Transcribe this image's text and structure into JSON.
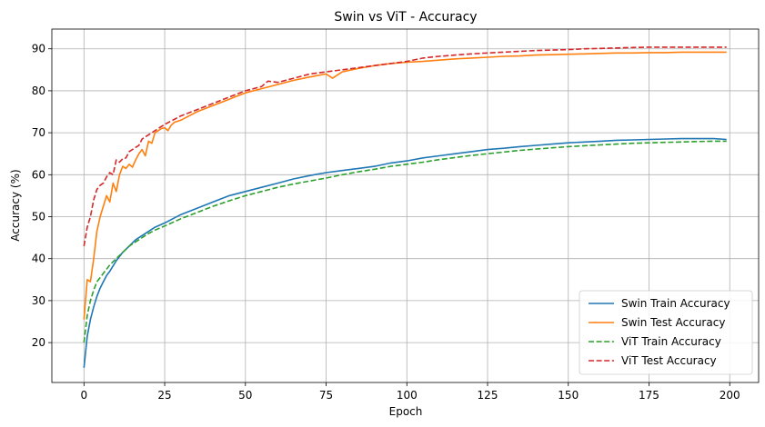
{
  "chart_data": {
    "type": "line",
    "title": "Swin vs ViT - Accuracy",
    "xlabel": "Epoch",
    "ylabel": "Accuracy (%)",
    "xlim": [
      -9.95,
      208.95
    ],
    "ylim": [
      10.5,
      94.7
    ],
    "xticks": [
      0,
      25,
      50,
      75,
      100,
      125,
      150,
      175,
      200
    ],
    "yticks": [
      20,
      30,
      40,
      50,
      60,
      70,
      80,
      90
    ],
    "grid": true,
    "legend_position": "bottom-right",
    "series": [
      {
        "name": "Swin Train Accuracy",
        "color": "#1f77b4",
        "dash": "solid",
        "x": [
          0,
          1,
          2,
          3,
          4,
          5,
          6,
          7,
          8,
          10,
          12,
          14,
          16,
          18,
          20,
          22,
          25,
          30,
          35,
          40,
          45,
          50,
          55,
          60,
          65,
          70,
          75,
          80,
          85,
          90,
          95,
          100,
          105,
          110,
          115,
          120,
          125,
          130,
          135,
          140,
          145,
          150,
          155,
          160,
          165,
          170,
          175,
          180,
          185,
          190,
          195,
          199
        ],
        "y": [
          14.0,
          21.5,
          25.5,
          28.5,
          31.0,
          33.0,
          34.5,
          36.0,
          37.0,
          39.5,
          41.5,
          43.0,
          44.5,
          45.5,
          46.5,
          47.5,
          48.5,
          50.5,
          52.0,
          53.5,
          55.0,
          56.0,
          57.0,
          58.0,
          59.0,
          59.8,
          60.5,
          61.0,
          61.5,
          62.0,
          62.8,
          63.3,
          64.0,
          64.5,
          65.0,
          65.5,
          66.0,
          66.3,
          66.7,
          67.0,
          67.3,
          67.6,
          67.8,
          68.0,
          68.2,
          68.3,
          68.4,
          68.5,
          68.6,
          68.6,
          68.6,
          68.4
        ]
      },
      {
        "name": "Swin Test Accuracy",
        "color": "#ff7f0e",
        "dash": "solid",
        "x": [
          0,
          1,
          2,
          3,
          4,
          5,
          6,
          7,
          8,
          9,
          10,
          11,
          12,
          13,
          14,
          15,
          16,
          17,
          18,
          19,
          20,
          21,
          22,
          23,
          24,
          25,
          26,
          27,
          28,
          30,
          35,
          40,
          45,
          50,
          55,
          60,
          65,
          70,
          75,
          77,
          80,
          85,
          90,
          95,
          100,
          105,
          110,
          115,
          120,
          125,
          130,
          135,
          140,
          145,
          150,
          155,
          160,
          165,
          170,
          175,
          180,
          185,
          190,
          195,
          199
        ],
        "y": [
          25.5,
          35.0,
          34.5,
          40.0,
          46.5,
          50.0,
          52.5,
          55.0,
          53.5,
          58.0,
          56.0,
          60.0,
          62.0,
          61.5,
          62.5,
          61.8,
          63.5,
          65.0,
          66.0,
          64.5,
          68.0,
          67.5,
          70.0,
          70.5,
          71.0,
          71.2,
          70.5,
          71.8,
          72.5,
          73.0,
          75.0,
          76.5,
          78.0,
          79.5,
          80.5,
          81.5,
          82.5,
          83.3,
          84.0,
          83.0,
          84.5,
          85.3,
          86.0,
          86.5,
          86.8,
          87.0,
          87.3,
          87.6,
          87.8,
          88.0,
          88.2,
          88.3,
          88.5,
          88.6,
          88.7,
          88.8,
          88.9,
          89.0,
          89.0,
          89.1,
          89.1,
          89.2,
          89.2,
          89.2,
          89.2
        ]
      },
      {
        "name": "ViT Train Accuracy",
        "color": "#2ca02c",
        "dash": "dashed",
        "x": [
          0,
          1,
          2,
          3,
          4,
          5,
          6,
          7,
          8,
          10,
          12,
          14,
          16,
          18,
          20,
          22,
          25,
          30,
          35,
          40,
          45,
          50,
          55,
          60,
          65,
          70,
          75,
          80,
          85,
          90,
          95,
          100,
          105,
          110,
          115,
          120,
          125,
          130,
          135,
          140,
          145,
          150,
          155,
          160,
          165,
          170,
          175,
          180,
          185,
          190,
          195,
          199
        ],
        "y": [
          20.0,
          26.5,
          30.0,
          32.5,
          34.5,
          35.5,
          36.5,
          37.5,
          38.5,
          40.0,
          41.5,
          43.0,
          44.0,
          45.0,
          46.0,
          46.8,
          47.8,
          49.5,
          51.0,
          52.5,
          53.8,
          55.0,
          56.0,
          57.0,
          57.8,
          58.5,
          59.2,
          60.0,
          60.7,
          61.3,
          62.0,
          62.5,
          63.0,
          63.6,
          64.1,
          64.6,
          65.0,
          65.4,
          65.8,
          66.1,
          66.4,
          66.7,
          66.9,
          67.1,
          67.3,
          67.5,
          67.6,
          67.7,
          67.8,
          67.9,
          68.0,
          68.0
        ]
      },
      {
        "name": "ViT Test Accuracy",
        "color": "#d62728",
        "dash": "dashed",
        "x": [
          0,
          1,
          2,
          3,
          4,
          5,
          6,
          7,
          8,
          9,
          10,
          11,
          12,
          13,
          14,
          15,
          16,
          17,
          18,
          20,
          22,
          25,
          30,
          35,
          40,
          45,
          50,
          55,
          57,
          60,
          65,
          70,
          75,
          80,
          85,
          90,
          95,
          100,
          105,
          110,
          115,
          120,
          125,
          130,
          135,
          140,
          145,
          150,
          155,
          160,
          165,
          170,
          175,
          180,
          185,
          190,
          195,
          199
        ],
        "y": [
          43.0,
          47.5,
          50.0,
          54.0,
          56.5,
          57.5,
          58.0,
          59.5,
          60.5,
          60.0,
          63.5,
          63.0,
          63.8,
          64.0,
          65.5,
          66.0,
          66.5,
          67.0,
          68.5,
          69.5,
          70.5,
          72.0,
          74.0,
          75.5,
          77.0,
          78.5,
          80.0,
          81.0,
          82.3,
          82.0,
          83.0,
          84.0,
          84.5,
          85.0,
          85.5,
          86.0,
          86.5,
          87.0,
          87.8,
          88.2,
          88.5,
          88.8,
          89.0,
          89.2,
          89.4,
          89.6,
          89.7,
          89.8,
          90.0,
          90.1,
          90.2,
          90.3,
          90.4,
          90.4,
          90.4,
          90.4,
          90.4,
          90.4
        ]
      }
    ]
  }
}
